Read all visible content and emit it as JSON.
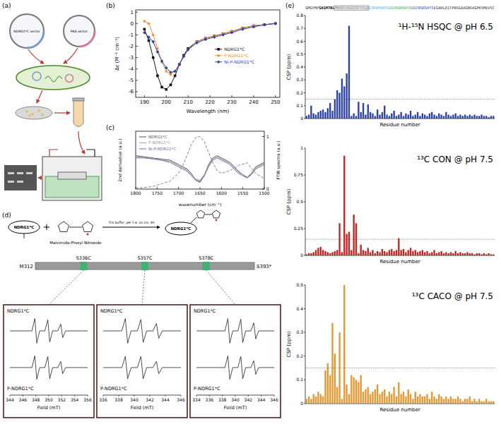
{
  "panel_labels": [
    "(a)",
    "(b)",
    "(c)",
    "(d)",
    "(e)"
  ],
  "schematic": {
    "plasmids": [
      "NDRG1*C vector",
      "PKA vector"
    ]
  },
  "reaction": {
    "reactant": "NDRG1*C",
    "reagent": "Maleimido-Proxyl Nitroxide",
    "conditions": "Tris buffer, pH 7.4, on ice, 4h",
    "product": "NDRG1*C"
  },
  "construct": {
    "start": "M312",
    "sites": [
      "S336C",
      "S357C",
      "S378C"
    ],
    "end": "S393*"
  },
  "sequence": [
    {
      "text": "GMGYMP",
      "color": "#333333"
    },
    {
      "text": "SASMTRL",
      "color": "#000000",
      "style": "bold"
    },
    {
      "text": "MRSRTASGSSVTSLD",
      "color": "#8a8a8a",
      "style": "boxed"
    },
    {
      "text": "GTRSRSHTSE",
      "color": "#3fa9f5"
    },
    {
      "text": "GTRSRSHTSE",
      "color": "#2e9e3e"
    },
    {
      "text": "GTRSRSHTSE",
      "color": "#1f3f9f"
    },
    {
      "text": "GAHLDITPNSGAAGNSAGPKSMEVSC",
      "color": "#333333"
    }
  ],
  "chart_data": [
    {
      "type": "line",
      "xlabel": "Wavelength (nm)",
      "ylabel": "Δε (M⁻¹ cm⁻¹)",
      "xlim": [
        186,
        252
      ],
      "xticks": [
        190,
        200,
        210,
        220,
        230,
        240,
        250
      ],
      "ylim": [
        -6.5,
        1.2
      ],
      "yticks": [
        -6,
        -5,
        -4,
        -3,
        -2,
        -1,
        0,
        1
      ],
      "legend": "right",
      "x": [
        190,
        192,
        194,
        196,
        198,
        200,
        202,
        204,
        206,
        208,
        210,
        214,
        218,
        222,
        226,
        230,
        235,
        240,
        245,
        250
      ],
      "series": [
        {
          "name": "NDRG1*C",
          "color": "#111111",
          "marker": "square",
          "line_style": "solid",
          "values": [
            -0.5,
            -1.5,
            -3.0,
            -4.6,
            -5.6,
            -5.8,
            -5.4,
            -4.6,
            -3.6,
            -2.8,
            -2.2,
            -1.6,
            -1.3,
            -1.1,
            -0.9,
            -0.7,
            -0.4,
            -0.2,
            -0.1,
            0
          ]
        },
        {
          "name": "P-NDRG1*C",
          "color": "#f28e2b",
          "marker": "circle",
          "line_style": "solid",
          "values": [
            0.2,
            0.0,
            -1.0,
            -2.2,
            -3.4,
            -4.2,
            -4.5,
            -4.2,
            -3.6,
            -2.9,
            -2.3,
            -1.6,
            -1.3,
            -1.1,
            -0.9,
            -0.7,
            -0.4,
            -0.2,
            -0.1,
            0
          ]
        },
        {
          "name": "Ni-P-NDRG1*C",
          "color": "#2c3fb5",
          "marker": "diamond",
          "line_style": "solid",
          "values": [
            -0.8,
            -1.2,
            -1.6,
            -2.5,
            -3.3,
            -3.9,
            -4.3,
            -4.2,
            -3.6,
            -2.9,
            -2.3,
            -1.7,
            -1.4,
            -1.2,
            -1.0,
            -0.8,
            -0.5,
            -0.3,
            -0.1,
            0
          ]
        }
      ]
    },
    {
      "type": "line",
      "xlabel": "wavenumber (cm⁻¹)",
      "ylabel": "2nd derivative (a.u.)",
      "y2label": "FTIR spectra (a.u.)",
      "xlim": [
        1800,
        1500
      ],
      "xticks": [
        1800,
        1750,
        1700,
        1650,
        1600,
        1550,
        1500
      ],
      "ylim": [
        -1,
        1.6
      ],
      "y2lim": [
        0,
        1.1
      ],
      "y2ticks": [
        0,
        1
      ],
      "legend": "upper left",
      "x": [
        1800,
        1780,
        1760,
        1740,
        1720,
        1700,
        1690,
        1680,
        1670,
        1660,
        1650,
        1640,
        1630,
        1620,
        1610,
        1600,
        1580,
        1560,
        1540,
        1530,
        1520,
        1500
      ],
      "series": [
        {
          "name": "NDRG1*C",
          "color": "#555555",
          "line_style": "solid",
          "values": [
            0.5,
            0.45,
            0.4,
            0.35,
            0.3,
            0.1,
            0.0,
            -0.1,
            -0.3,
            -0.6,
            -0.7,
            -0.4,
            0.1,
            0.4,
            0.5,
            0.4,
            0.2,
            -0.2,
            -0.5,
            -0.3,
            0.0,
            0.2
          ]
        },
        {
          "name": "P-NDRG1*C",
          "color": "#a0a0a0",
          "line_style": "solid",
          "values": [
            0.45,
            0.42,
            0.38,
            0.3,
            0.25,
            0.05,
            -0.05,
            -0.15,
            -0.35,
            -0.55,
            -0.6,
            -0.35,
            0.05,
            0.35,
            0.45,
            0.35,
            0.15,
            -0.25,
            -0.45,
            -0.3,
            -0.05,
            0.15
          ]
        },
        {
          "name": "Ni-P-NDRG1*C",
          "color": "#7b68b0",
          "line_style": "solid",
          "values": [
            0.4,
            0.4,
            0.35,
            0.3,
            0.2,
            0.0,
            -0.1,
            -0.2,
            -0.4,
            -0.6,
            -0.65,
            -0.4,
            0.0,
            0.3,
            0.4,
            0.3,
            0.1,
            -0.3,
            -0.5,
            -0.35,
            -0.1,
            0.1
          ]
        },
        {
          "color": "#888888",
          "line_style": "dashed",
          "axis": "y2",
          "values": [
            0.02,
            0.03,
            0.05,
            0.1,
            0.15,
            0.3,
            0.45,
            0.65,
            0.85,
            0.98,
            1.0,
            0.9,
            0.7,
            0.5,
            0.35,
            0.3,
            0.35,
            0.45,
            0.5,
            0.4,
            0.3,
            0.2
          ]
        }
      ]
    },
    {
      "type": "line",
      "xlabel": "Field (mT)",
      "xlim": [
        344,
        356
      ],
      "xticks": [
        344,
        346,
        348,
        350,
        352,
        354,
        356
      ],
      "ylim": [
        -1.2,
        1.2
      ],
      "tick_labels": "x",
      "x": [
        344,
        347.4,
        347.85,
        348,
        348.15,
        348.6,
        349.4,
        349.85,
        350,
        350.15,
        350.6,
        351.4,
        351.85,
        352,
        352.15,
        352.6,
        356
      ],
      "series": [
        {
          "name": "NDRG1*C",
          "color": "#222222",
          "values": [
            0,
            0,
            1,
            0,
            -1,
            0,
            0,
            0.9,
            0,
            -0.9,
            0,
            0,
            0.55,
            0,
            -0.55,
            0,
            0
          ]
        },
        {
          "name": "P-NDRG1*C",
          "color": "#222222",
          "values": [
            0,
            0,
            0.95,
            0,
            -0.95,
            0,
            0,
            0.9,
            0,
            -0.9,
            0,
            0,
            0.5,
            0,
            -0.5,
            0,
            0
          ]
        }
      ]
    },
    {
      "type": "line",
      "xlabel": "Field (mT)",
      "xlim": [
        336,
        346
      ],
      "xticks": [
        336,
        338,
        340,
        342,
        344,
        346
      ],
      "ylim": [
        -1.2,
        1.2
      ],
      "tick_labels": "x",
      "x": [
        336,
        338.4,
        338.85,
        339,
        339.15,
        339.6,
        340.4,
        340.85,
        341,
        341.15,
        341.6,
        342.4,
        342.85,
        343,
        343.15,
        343.6,
        346
      ],
      "series": [
        {
          "name": "NDRG1*C",
          "color": "#222222",
          "values": [
            0,
            0,
            1,
            0,
            -1,
            0,
            0,
            0.92,
            0,
            -0.92,
            0,
            0,
            0.6,
            0,
            -0.6,
            0,
            0
          ]
        },
        {
          "name": "P-NDRG1*C",
          "color": "#222222",
          "values": [
            0,
            0,
            0.9,
            0,
            -0.9,
            0,
            0,
            0.9,
            0,
            -0.9,
            0,
            0,
            0.5,
            0,
            -0.5,
            0,
            0
          ]
        }
      ]
    },
    {
      "type": "line",
      "xlabel": "Field (mT)",
      "xlim": [
        334,
        346
      ],
      "xticks": [
        334,
        336,
        338,
        340,
        342,
        344,
        346
      ],
      "ylim": [
        -1.2,
        1.2
      ],
      "tick_labels": "x",
      "x": [
        334,
        338.4,
        338.85,
        339,
        339.15,
        339.6,
        340.4,
        340.85,
        341,
        341.15,
        341.6,
        342.4,
        342.85,
        343,
        343.15,
        343.6,
        346
      ],
      "series": [
        {
          "name": "NDRG1*C",
          "color": "#222222",
          "values": [
            0,
            0,
            1,
            0,
            -1,
            0,
            0,
            0.95,
            0,
            -0.95,
            0,
            0,
            0.65,
            0,
            -0.65,
            0,
            0
          ]
        },
        {
          "name": "P-NDRG1*C",
          "color": "#222222",
          "values": [
            0,
            0,
            0.95,
            0,
            -0.95,
            0,
            0,
            0.9,
            0,
            -0.9,
            0,
            0,
            0.55,
            0,
            -0.55,
            0,
            0
          ]
        }
      ]
    },
    {
      "type": "bar",
      "title": "¹H-¹⁵N HSQC @ pH 6.5",
      "xlabel": "Residue number",
      "ylabel": "CSP (ppm)",
      "ylim": [
        0,
        0.8
      ],
      "yticks": [
        0,
        0.1,
        0.2,
        0.3,
        0.4,
        0.5,
        0.6,
        0.7,
        0.8
      ],
      "tick_labels": "y",
      "color": "#2b3fae",
      "threshold": 0.15,
      "values": [
        0.02,
        0.03,
        0.1,
        0.04,
        0.03,
        0.05,
        0.06,
        0.07,
        0.05,
        0.08,
        0.12,
        0.06,
        0.15,
        0.22,
        0.2,
        0.31,
        0.25,
        0.35,
        0.72,
        0.02,
        0.04,
        0.02,
        0.13,
        0.05,
        0.12,
        0.03,
        0.11,
        0.05,
        0.04,
        0.02,
        0.07,
        0.03,
        0.05,
        0.1,
        0.03,
        0.02,
        0.04,
        0.06,
        0.02,
        0.03,
        0.05,
        0.02,
        0.04,
        0.03,
        0.06,
        0.02,
        0.03,
        0.05,
        0.02,
        0.04,
        0.03,
        0.02,
        0.04,
        0.05,
        0.03,
        0.02,
        0.04,
        0.03,
        0.02,
        0.05,
        0.03,
        0.02,
        0.03,
        0.04,
        0.02,
        0.03,
        0.02,
        0.03,
        0.02,
        0.03,
        0.02,
        0.03,
        0.02,
        0.02,
        0.03,
        0.02,
        0.02,
        0.01,
        0.02,
        0.02
      ]
    },
    {
      "type": "bar",
      "title": "¹³C CON @ pH 7.5",
      "xlabel": "Residue number",
      "ylabel": "CSP (ppm)",
      "ylim": [
        0,
        1
      ],
      "yticks": [
        0,
        0.25,
        0.5,
        0.75,
        1
      ],
      "tick_labels": "y",
      "color": "#cc2020",
      "threshold": 0.15,
      "values": [
        0.01,
        0.02,
        0.02,
        0.03,
        0.05,
        0.07,
        0.08,
        0.05,
        0.04,
        0.03,
        0.02,
        0.03,
        0.04,
        0.05,
        0.3,
        0.03,
        0.93,
        0.2,
        0.22,
        0.05,
        0.38,
        0.3,
        0.02,
        0.1,
        0.05,
        0.04,
        0.07,
        0.03,
        0.05,
        0.02,
        0.04,
        0.03,
        0.06,
        0.04,
        0.03,
        0.05,
        0.06,
        0.04,
        0.05,
        0.16,
        0.05,
        0.06,
        0.03,
        0.05,
        0.07,
        0.04,
        0.05,
        0.03,
        0.04,
        0.05,
        0.03,
        0.04,
        0.02,
        0.03,
        0.05,
        0.02,
        0.03,
        0.04,
        0.02,
        0.03,
        0.02,
        0.03,
        0.02,
        0.04,
        0.02,
        0.03,
        0.02,
        0.02,
        0.03,
        0.02,
        0.02,
        0.01,
        0.02,
        0.02,
        0.01,
        0.02,
        0.01,
        0.02,
        0.01,
        0.01
      ]
    },
    {
      "type": "bar",
      "title": "¹³C CACO @ pH 7.5",
      "xlabel": "Residue number",
      "ylabel": "CSP (ppm)",
      "ylim": [
        0,
        0.5
      ],
      "yticks": [
        0,
        0.1,
        0.2,
        0.3,
        0.4,
        0.5
      ],
      "tick_labels": "y",
      "color": "#e8962e",
      "threshold": 0.15,
      "values": [
        0.02,
        0.03,
        0.02,
        0.04,
        0.03,
        0.05,
        0.04,
        0.03,
        0.14,
        0.17,
        0.12,
        0.34,
        0.21,
        0.07,
        0.3,
        0.02,
        0.5,
        0.08,
        0.04,
        0.12,
        0.11,
        0.1,
        0.09,
        0.12,
        0.05,
        0.06,
        0.07,
        0.04,
        0.05,
        0.06,
        0.08,
        0.04,
        0.05,
        0.06,
        0.03,
        0.05,
        0.04,
        0.07,
        0.03,
        0.09,
        0.04,
        0.05,
        0.03,
        0.06,
        0.04,
        0.02,
        0.05,
        0.03,
        0.04,
        0.03,
        0.03,
        0.04,
        0.02,
        0.05,
        0.03,
        0.02,
        0.04,
        0.03,
        0.02,
        0.03,
        0.02,
        0.03,
        0.02,
        0.02,
        0.03,
        0.02,
        0.01,
        0.02,
        0.02,
        0.03,
        0.01,
        0.02,
        0.01,
        0.02,
        0.01,
        0.01,
        0.02,
        0.01,
        0.01,
        0.01
      ]
    }
  ]
}
